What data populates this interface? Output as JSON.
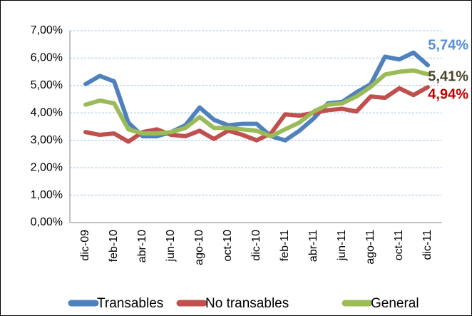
{
  "chart_data": {
    "type": "line",
    "categories": [
      "dic-09",
      null,
      "feb-10",
      null,
      "abr-10",
      null,
      "jun-10",
      null,
      "ago-10",
      null,
      "oct-10",
      null,
      "dic-10",
      null,
      "feb-11",
      null,
      "abr-11",
      null,
      "jun-11",
      null,
      "ago-11",
      null,
      "oct-11",
      null,
      "dic-11"
    ],
    "series": [
      {
        "name": "Transables",
        "color": "#4f81bd",
        "label_color": "#558ed5",
        "values": [
          5.05,
          5.35,
          5.15,
          3.65,
          3.15,
          3.15,
          3.3,
          3.55,
          4.2,
          3.75,
          3.55,
          3.6,
          3.6,
          3.15,
          3.0,
          3.35,
          3.8,
          4.35,
          4.4,
          4.75,
          5.05,
          6.05,
          5.95,
          6.2,
          5.74
        ],
        "value_labels": [
          null,
          null,
          null,
          null,
          null,
          null,
          null,
          null,
          null,
          null,
          null,
          null,
          null,
          null,
          null,
          null,
          null,
          null,
          null,
          null,
          null,
          null,
          null,
          null,
          "5,74%"
        ]
      },
      {
        "name": "No transables",
        "color": "#c0504d",
        "label_color": "#c00000",
        "values": [
          3.3,
          3.2,
          3.25,
          2.95,
          3.3,
          3.4,
          3.2,
          3.15,
          3.35,
          3.05,
          3.35,
          3.2,
          3.0,
          3.25,
          3.95,
          3.9,
          4.0,
          4.1,
          4.15,
          4.05,
          4.6,
          4.55,
          4.9,
          4.65,
          4.94
        ],
        "value_labels": [
          null,
          null,
          null,
          null,
          null,
          null,
          null,
          null,
          null,
          null,
          null,
          null,
          null,
          null,
          null,
          null,
          null,
          null,
          null,
          null,
          null,
          null,
          null,
          null,
          "4,94%"
        ]
      },
      {
        "name": "General",
        "color": "#9bbb59",
        "label_color": "#4a452a",
        "values": [
          4.3,
          4.45,
          4.35,
          3.4,
          3.25,
          3.25,
          3.3,
          3.45,
          3.85,
          3.45,
          3.45,
          3.4,
          3.35,
          3.15,
          3.4,
          3.65,
          4.05,
          4.3,
          4.35,
          4.6,
          4.95,
          5.4,
          5.5,
          5.55,
          5.41
        ],
        "value_labels": [
          null,
          null,
          null,
          null,
          null,
          null,
          null,
          null,
          null,
          null,
          null,
          null,
          null,
          null,
          null,
          null,
          null,
          null,
          null,
          null,
          null,
          null,
          null,
          null,
          "5,41%"
        ]
      }
    ],
    "ylim": [
      0,
      7
    ],
    "yticks": [
      {
        "value": 0,
        "label": "0,00%"
      },
      {
        "value": 1,
        "label": "1,00%"
      },
      {
        "value": 2,
        "label": "2,00%"
      },
      {
        "value": 3,
        "label": "3,00%"
      },
      {
        "value": 4,
        "label": "4,00%"
      },
      {
        "value": 5,
        "label": "5,00%"
      },
      {
        "value": 6,
        "label": "6,00%"
      },
      {
        "value": 7,
        "label": "7,00%"
      }
    ],
    "grid": true,
    "legend": "bottom"
  }
}
